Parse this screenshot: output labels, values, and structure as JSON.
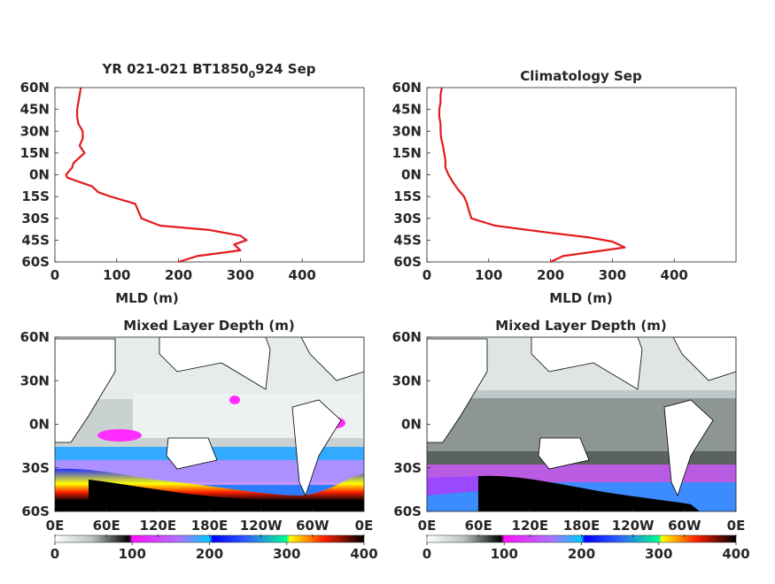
{
  "chart_data": [
    {
      "type": "line",
      "title": "YR 021-021 BT1850",
      "title_sub": "0",
      "title_tail": "924 Sep",
      "xlabel": "MLD (m)",
      "ylabel": "",
      "xlim": [
        0,
        500
      ],
      "xticks": [
        "0",
        "100",
        "200",
        "300",
        "400"
      ],
      "yticks": [
        "60N",
        "45N",
        "30N",
        "15N",
        "0N",
        "15S",
        "30S",
        "45S",
        "60S"
      ],
      "color": "#e31a1c",
      "series": [
        {
          "lat": [
            60,
            55,
            50,
            45,
            40,
            35,
            30,
            25,
            20,
            15,
            12,
            8,
            5,
            2,
            0,
            -2,
            -5,
            -8,
            -12,
            -15,
            -20,
            -25,
            -30,
            -35,
            -38,
            -42,
            -45,
            -48,
            -52,
            -56,
            -60
          ],
          "mld": [
            42,
            40,
            38,
            36,
            36,
            38,
            45,
            45,
            40,
            48,
            40,
            30,
            28,
            22,
            18,
            20,
            40,
            60,
            70,
            90,
            130,
            135,
            140,
            170,
            250,
            300,
            310,
            290,
            300,
            230,
            200
          ]
        }
      ]
    },
    {
      "type": "line",
      "title": "Climatology Sep",
      "xlabel": "MLD (m)",
      "ylabel": "",
      "xlim": [
        0,
        500
      ],
      "xticks": [
        "0",
        "100",
        "200",
        "300",
        "400"
      ],
      "yticks": [
        "60N",
        "45N",
        "30N",
        "15N",
        "0N",
        "15S",
        "30S",
        "45S",
        "60S"
      ],
      "color": "#e31a1c",
      "series": [
        {
          "lat": [
            60,
            55,
            50,
            45,
            40,
            35,
            30,
            25,
            20,
            15,
            10,
            5,
            0,
            -5,
            -10,
            -15,
            -20,
            -25,
            -30,
            -35,
            -40,
            -43,
            -46,
            -50,
            -53,
            -56,
            -60
          ],
          "mld": [
            24,
            22,
            22,
            20,
            20,
            22,
            22,
            23,
            26,
            28,
            30,
            30,
            35,
            42,
            50,
            60,
            65,
            68,
            72,
            110,
            200,
            260,
            300,
            320,
            270,
            220,
            200
          ]
        }
      ]
    },
    {
      "type": "heatmap",
      "title": "Mixed Layer Depth (m)",
      "xticks": [
        "0E",
        "60E",
        "120E",
        "180E",
        "120W",
        "60W",
        "0E"
      ],
      "yticks": [
        "60N",
        "30N",
        "0N",
        "30S",
        "60S"
      ],
      "colorbar_ticks": [
        "0",
        "100",
        "200",
        "300",
        "400"
      ],
      "clim": [
        0,
        400
      ]
    },
    {
      "type": "heatmap",
      "title": "Mixed Layer Depth (m)",
      "xticks": [
        "0E",
        "60E",
        "120E",
        "180E",
        "120W",
        "60W",
        "0E"
      ],
      "yticks": [
        "60N",
        "30N",
        "0N",
        "30S",
        "60S"
      ],
      "colorbar_ticks": [
        "0",
        "100",
        "200",
        "300",
        "400"
      ],
      "clim": [
        0,
        400
      ]
    }
  ]
}
